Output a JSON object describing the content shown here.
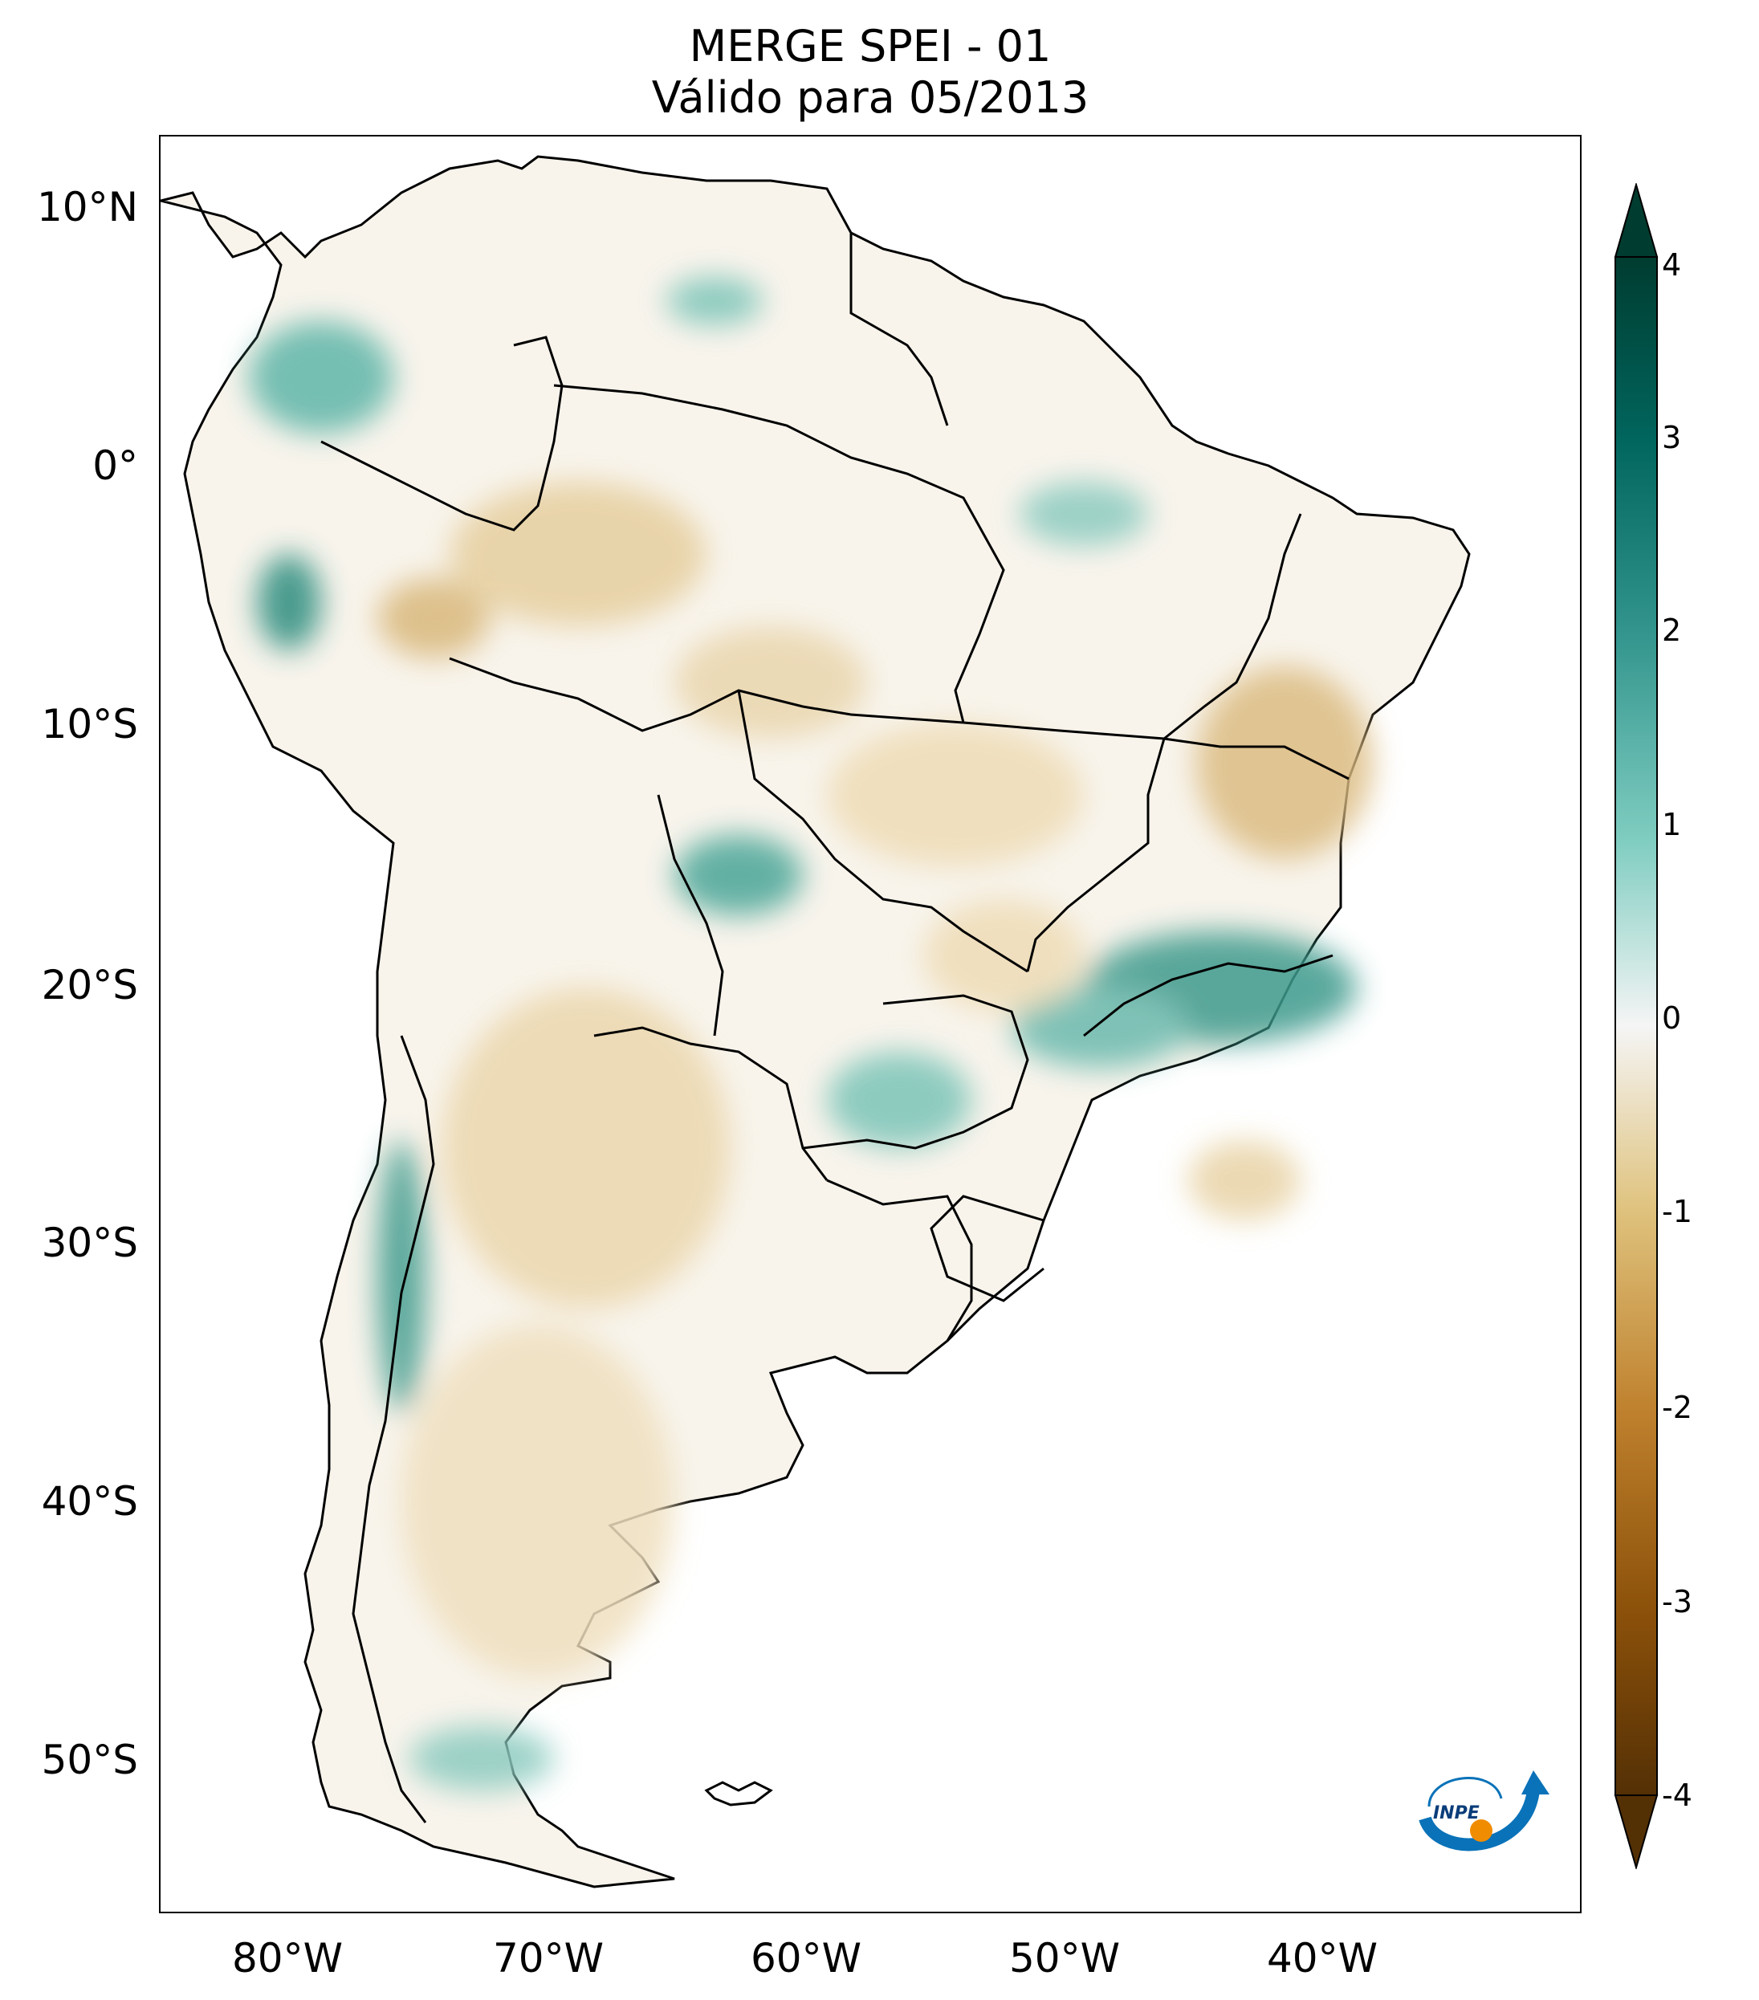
{
  "title": {
    "line1": "MERGE   SPEI - 01",
    "line2": "Válido para 05/2013"
  },
  "map": {
    "lat_labels": [
      "10°N",
      "0°",
      "10°S",
      "20°S",
      "30°S",
      "40°S",
      "50°S"
    ],
    "lon_labels": [
      "80°W",
      "70°W",
      "60°W",
      "50°W",
      "40°W"
    ]
  },
  "colorbar": {
    "min": -4,
    "max": 4,
    "tick_labels": [
      "4",
      "3",
      "2",
      "1",
      "0",
      "-1",
      "-2",
      "-3",
      "-4"
    ],
    "colors": {
      "dry": "#543005",
      "mid": "#f5f5f5",
      "wet": "#003c30"
    }
  },
  "logo": {
    "text": "INPE",
    "icon": "inpe-logo-icon"
  }
}
